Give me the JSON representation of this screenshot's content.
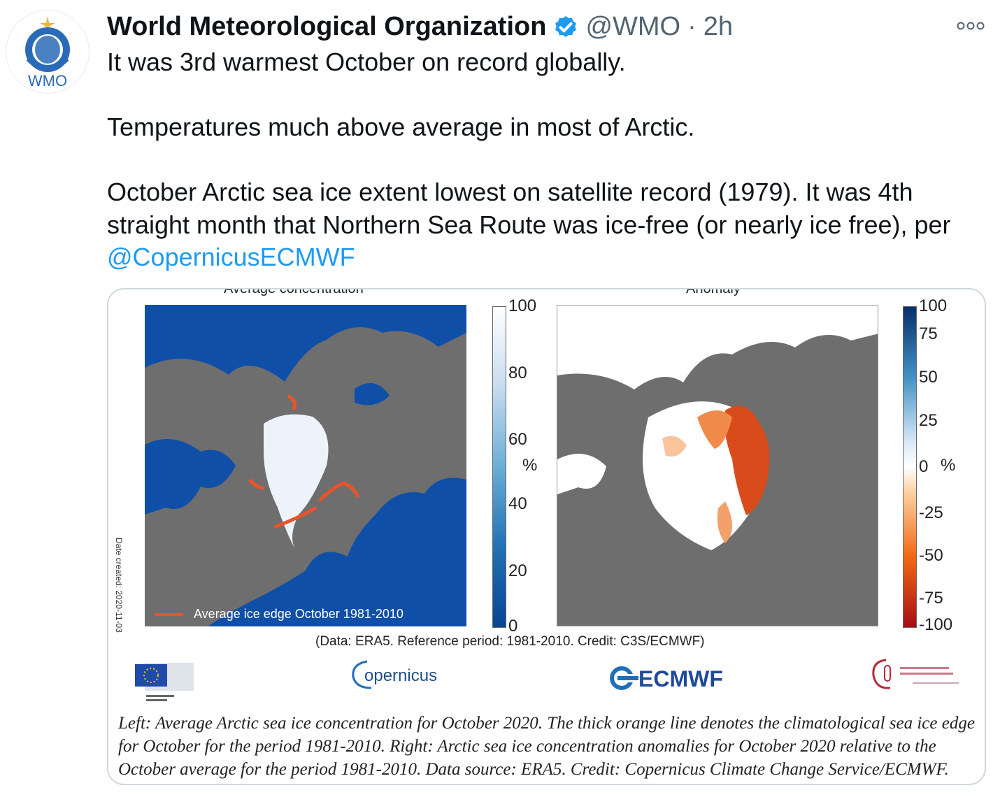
{
  "tweet": {
    "author_name": "World Meteorological Organization",
    "handle": "@WMO",
    "separator": "·",
    "time": "2h",
    "avatar_text": "WMO",
    "lines": [
      "It was 3rd warmest October on record globally.",
      "Temperatures much above average in most of Arctic.",
      "October Arctic sea ice extent lowest on satellite record (1979). It was 4th straight month that Northern Sea Route was ice-free (or nearly ice free), per "
    ],
    "mention": "@CopernicusECMWF"
  },
  "card": {
    "left_title": "Average concentration",
    "right_title": "Anomaly",
    "left_ticks": [
      "100",
      "80",
      "60",
      "40",
      "20",
      "0"
    ],
    "left_unit": "%",
    "right_ticks": [
      "100",
      "75",
      "50",
      "25",
      "0",
      "-25",
      "-50",
      "-75",
      "-100"
    ],
    "right_unit": "%",
    "legend_label": "Average ice edge October 1981-2010",
    "date_created": "Date created: 2020-11-03",
    "data_credit": "(Data: ERA5.  Reference period: 1981-2010.  Credit: C3S/ECMWF)",
    "logo_copernicus": "opernicus",
    "logo_ecmwf": "ECMWF",
    "caption": "Left: Average Arctic sea ice concentration for October 2020. The thick orange line denotes the climatological sea ice edge for October for the period 1981-2010. Right: Arctic sea ice concentration anomalies for October 2020 relative to the October average for the period 1981-2010. Data source: ERA5. Credit: Copernicus Climate Change Service/ECMWF."
  },
  "colors": {
    "link": "#1d9bf0",
    "verified": "#1d9bf0",
    "ocean": "#0f4fa8",
    "land": "#6e6e6e",
    "ice_edge": "#e8542a"
  }
}
